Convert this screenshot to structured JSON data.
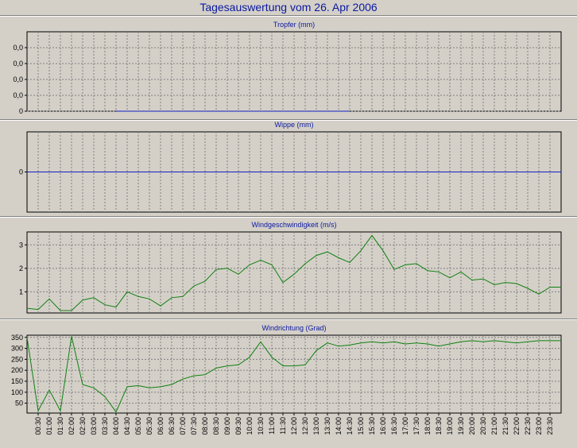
{
  "title": "Tagesauswertung vom 26. Apr 2006",
  "colors": {
    "title": "#0b18a0",
    "blue_series": "#1020c0",
    "green_series": "#108010",
    "grid": "#808080",
    "panel_bg": "#d4d0c8"
  },
  "x_ticks": [
    "00:30",
    "01:00",
    "01:30",
    "02:00",
    "02:30",
    "03:00",
    "03:30",
    "04:00",
    "04:30",
    "05:00",
    "05:30",
    "06:00",
    "06:30",
    "07:00",
    "07:30",
    "08:00",
    "08:30",
    "09:00",
    "09:30",
    "10:00",
    "10:30",
    "11:00",
    "11:30",
    "12:00",
    "12:30",
    "13:00",
    "13:30",
    "14:00",
    "14:30",
    "15:00",
    "15:30",
    "16:00",
    "16:30",
    "17:00",
    "17:30",
    "18:00",
    "18:30",
    "19:00",
    "19:30",
    "20:00",
    "20:30",
    "21:00",
    "21:30",
    "22:00",
    "22:30",
    "23:00",
    "23:30"
  ],
  "chart_data": [
    {
      "type": "line",
      "title": "Tropfer (mm)",
      "y_tick_labels": [
        "0",
        "0,0",
        "0,0",
        "0,0",
        "0,0"
      ],
      "y_tick_values": [
        0,
        1,
        2,
        3,
        4
      ],
      "ylim": [
        0,
        5
      ],
      "grid": true,
      "series": [
        {
          "color": "#1020c0",
          "x": [
            8,
            8.5,
            9,
            9.5,
            10,
            10.5,
            11,
            11.5,
            12,
            12.5,
            13,
            13.5,
            14,
            14.5,
            15,
            15.5,
            16,
            16.5,
            17,
            17.5,
            18,
            18.5,
            19,
            19.5,
            20,
            20.5,
            21,
            21.5,
            22,
            22.5,
            23,
            23.5,
            24,
            24.5,
            25,
            25.5,
            26,
            26.5,
            27,
            27.5,
            28,
            28.5,
            29
          ],
          "y": [
            0,
            0,
            0,
            0,
            0,
            0,
            0,
            0,
            0,
            0,
            0,
            0,
            0,
            0,
            0,
            0,
            0,
            0,
            0,
            0,
            0,
            0,
            0,
            0,
            0,
            0,
            0,
            0,
            0,
            0,
            0,
            0,
            0,
            0,
            0,
            0,
            0,
            0,
            0,
            0,
            0,
            0,
            0
          ]
        }
      ]
    },
    {
      "type": "line",
      "title": "Wippe (mm)",
      "y_tick_labels": [
        "0"
      ],
      "y_tick_values": [
        0
      ],
      "ylim": [
        -1,
        1
      ],
      "grid": true,
      "series": [
        {
          "color": "#1020c0",
          "x": [
            0,
            48
          ],
          "y": [
            0,
            0
          ]
        }
      ]
    },
    {
      "type": "line",
      "title": "Windgeschwindigkeit (m/s)",
      "y_tick_labels": [
        "1",
        "2",
        "3"
      ],
      "y_tick_values": [
        1,
        2,
        3
      ],
      "ylim": [
        0.1,
        3.55
      ],
      "grid": true,
      "series": [
        {
          "color": "#108010",
          "x": [
            0,
            1,
            2,
            3,
            4,
            5,
            6,
            7,
            8,
            9,
            10,
            11,
            12,
            13,
            14,
            15,
            16,
            17,
            18,
            19,
            20,
            21,
            22,
            23,
            24,
            25,
            26,
            27,
            28,
            29,
            30,
            31,
            32,
            33,
            34,
            35,
            36,
            37,
            38,
            39,
            40,
            41,
            42,
            43,
            44,
            45,
            46,
            47,
            48
          ],
          "y": [
            0.3,
            0.25,
            0.7,
            0.2,
            0.2,
            0.65,
            0.75,
            0.45,
            0.35,
            1.0,
            0.8,
            0.7,
            0.4,
            0.75,
            0.8,
            1.25,
            1.45,
            1.95,
            2.0,
            1.75,
            2.15,
            2.35,
            2.15,
            1.4,
            1.75,
            2.2,
            2.55,
            2.7,
            2.45,
            2.25,
            2.75,
            3.4,
            2.75,
            1.95,
            2.15,
            2.2,
            1.9,
            1.85,
            1.6,
            1.85,
            1.5,
            1.55,
            1.3,
            1.4,
            1.35,
            1.15,
            0.9,
            1.2,
            1.2
          ]
        }
      ]
    },
    {
      "type": "line",
      "title": "Windrichtung (Grad)",
      "y_tick_labels": [
        "50",
        "100",
        "150",
        "200",
        "250",
        "300",
        "350"
      ],
      "y_tick_values": [
        50,
        100,
        150,
        200,
        250,
        300,
        350
      ],
      "ylim": [
        5,
        360
      ],
      "grid": true,
      "series": [
        {
          "color": "#108010",
          "x": [
            0,
            1,
            2,
            3,
            4,
            5,
            6,
            7,
            8,
            9,
            10,
            11,
            12,
            13,
            14,
            15,
            16,
            17,
            18,
            19,
            20,
            21,
            22,
            23,
            24,
            25,
            26,
            27,
            28,
            29,
            30,
            31,
            32,
            33,
            34,
            35,
            36,
            37,
            38,
            39,
            40,
            41,
            42,
            43,
            44,
            45,
            46,
            47,
            48
          ],
          "y": [
            350,
            15,
            110,
            15,
            355,
            135,
            120,
            80,
            10,
            125,
            130,
            120,
            125,
            135,
            160,
            175,
            180,
            210,
            220,
            225,
            260,
            330,
            260,
            220,
            220,
            225,
            290,
            325,
            310,
            315,
            325,
            330,
            325,
            330,
            320,
            325,
            320,
            310,
            320,
            330,
            335,
            330,
            335,
            330,
            325,
            330,
            335,
            335,
            335
          ]
        }
      ]
    }
  ]
}
